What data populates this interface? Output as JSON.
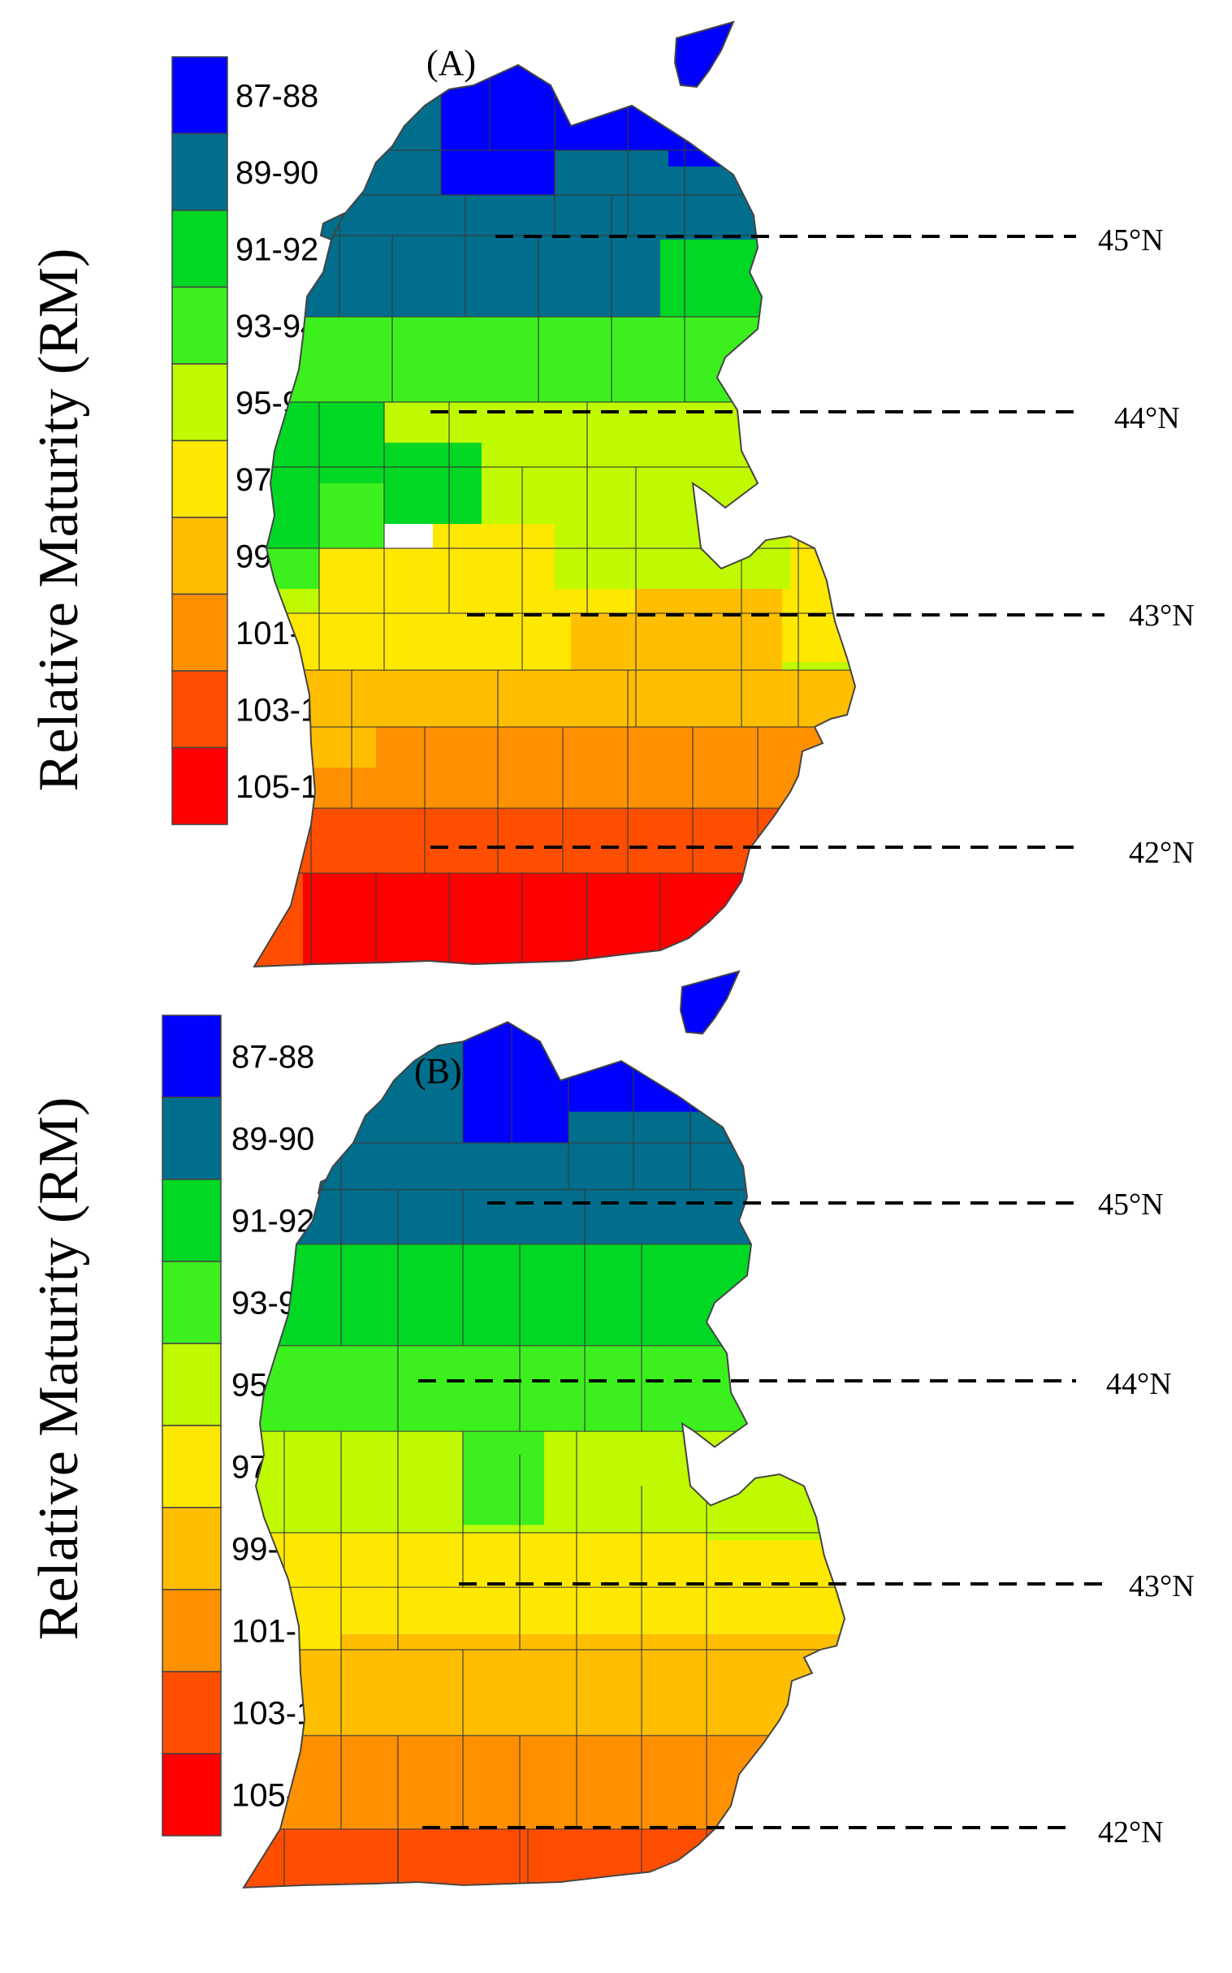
{
  "y_axis_label": "Relative Maturity (RM)",
  "legend": [
    {
      "label": "87-88",
      "color": "#0000ff"
    },
    {
      "label": "89-90",
      "color": "#006e8c"
    },
    {
      "label": "91-92",
      "color": "#00d823"
    },
    {
      "label": "93-94",
      "color": "#3cf01e"
    },
    {
      "label": "95-96",
      "color": "#c0fa00"
    },
    {
      "label": "97-98",
      "color": "#ffe800"
    },
    {
      "label": "99-100",
      "color": "#ffbe00"
    },
    {
      "label": "101-102",
      "color": "#ff9000"
    },
    {
      "label": "103-104",
      "color": "#ff4e00"
    },
    {
      "label": "105-106",
      "color": "#ff0000"
    }
  ],
  "latitude_labels": [
    "45°N",
    "44°N",
    "43°N",
    "42°N"
  ],
  "panels": [
    {
      "label": "(A)"
    },
    {
      "label": "(B)"
    }
  ]
}
